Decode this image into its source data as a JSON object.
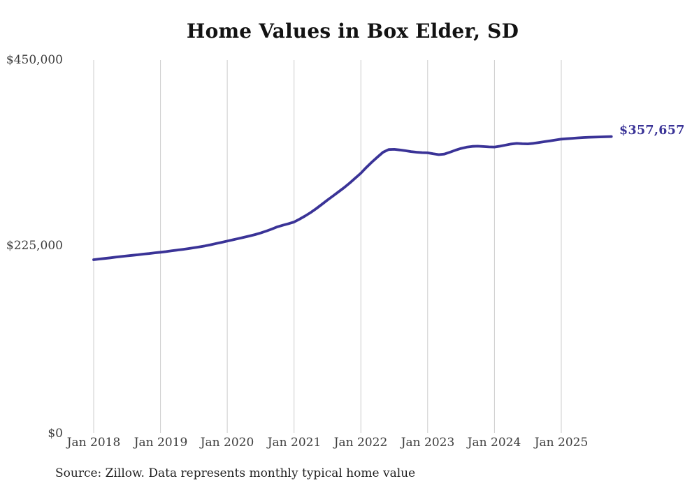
{
  "title": "Home Values in Box Elder, SD",
  "end_label": "$357,657",
  "source_note": "Source: Zillow. Data represents monthly typical home value",
  "colors": {
    "line": "#3a3397",
    "gridline": "#cccccc",
    "axis_text": "#3d3d3d",
    "title_text": "#121212",
    "end_label_text": "#3a3397",
    "source_text": "#1f1f1f",
    "background": "#ffffff"
  },
  "y_axis": {
    "ticks": [
      "$450,000",
      "$225,000",
      "$0"
    ]
  },
  "chart_data": {
    "type": "line",
    "title": "Home Values in Box Elder, SD",
    "xlabel": "",
    "ylabel": "",
    "x_tick_labels": [
      "Jan 2018",
      "Jan 2019",
      "Jan 2020",
      "Jan 2021",
      "Jan 2022",
      "Jan 2023",
      "Jan 2024",
      "Jan 2025"
    ],
    "y_tick_labels": [
      "$0",
      "$225,000",
      "$450,000"
    ],
    "ylim": [
      0,
      450000
    ],
    "grid": "vertical-only",
    "legend": "none",
    "last_point_label": "$357,657",
    "last_point_value": 357657,
    "series": [
      {
        "name": "Typical home value",
        "frequency": "monthly",
        "start": "Jan 2018",
        "end": "Oct 2025",
        "values": [
          209000,
          209800,
          210500,
          211300,
          212100,
          212900,
          213600,
          214300,
          215000,
          215800,
          216500,
          217300,
          218000,
          218800,
          219700,
          220600,
          221500,
          222400,
          223400,
          224500,
          225700,
          227000,
          228500,
          230000,
          231500,
          233000,
          234500,
          236000,
          237600,
          239300,
          241300,
          243500,
          246000,
          248700,
          250600,
          252500,
          254500,
          258000,
          261800,
          266000,
          270800,
          275800,
          281000,
          286000,
          291000,
          296000,
          301500,
          307500,
          313500,
          320500,
          327000,
          333000,
          338800,
          342000,
          342200,
          341500,
          340500,
          339500,
          338800,
          338300,
          338000,
          336800,
          335800,
          336500,
          338800,
          341200,
          343300,
          344800,
          345800,
          346000,
          345600,
          345200,
          345000,
          346000,
          347400,
          348600,
          349400,
          349000,
          348800,
          349500,
          350500,
          351500,
          352500,
          353500,
          354500,
          355000,
          355500,
          356000,
          356500,
          356800,
          357000,
          357200,
          357400,
          357657
        ]
      }
    ]
  }
}
